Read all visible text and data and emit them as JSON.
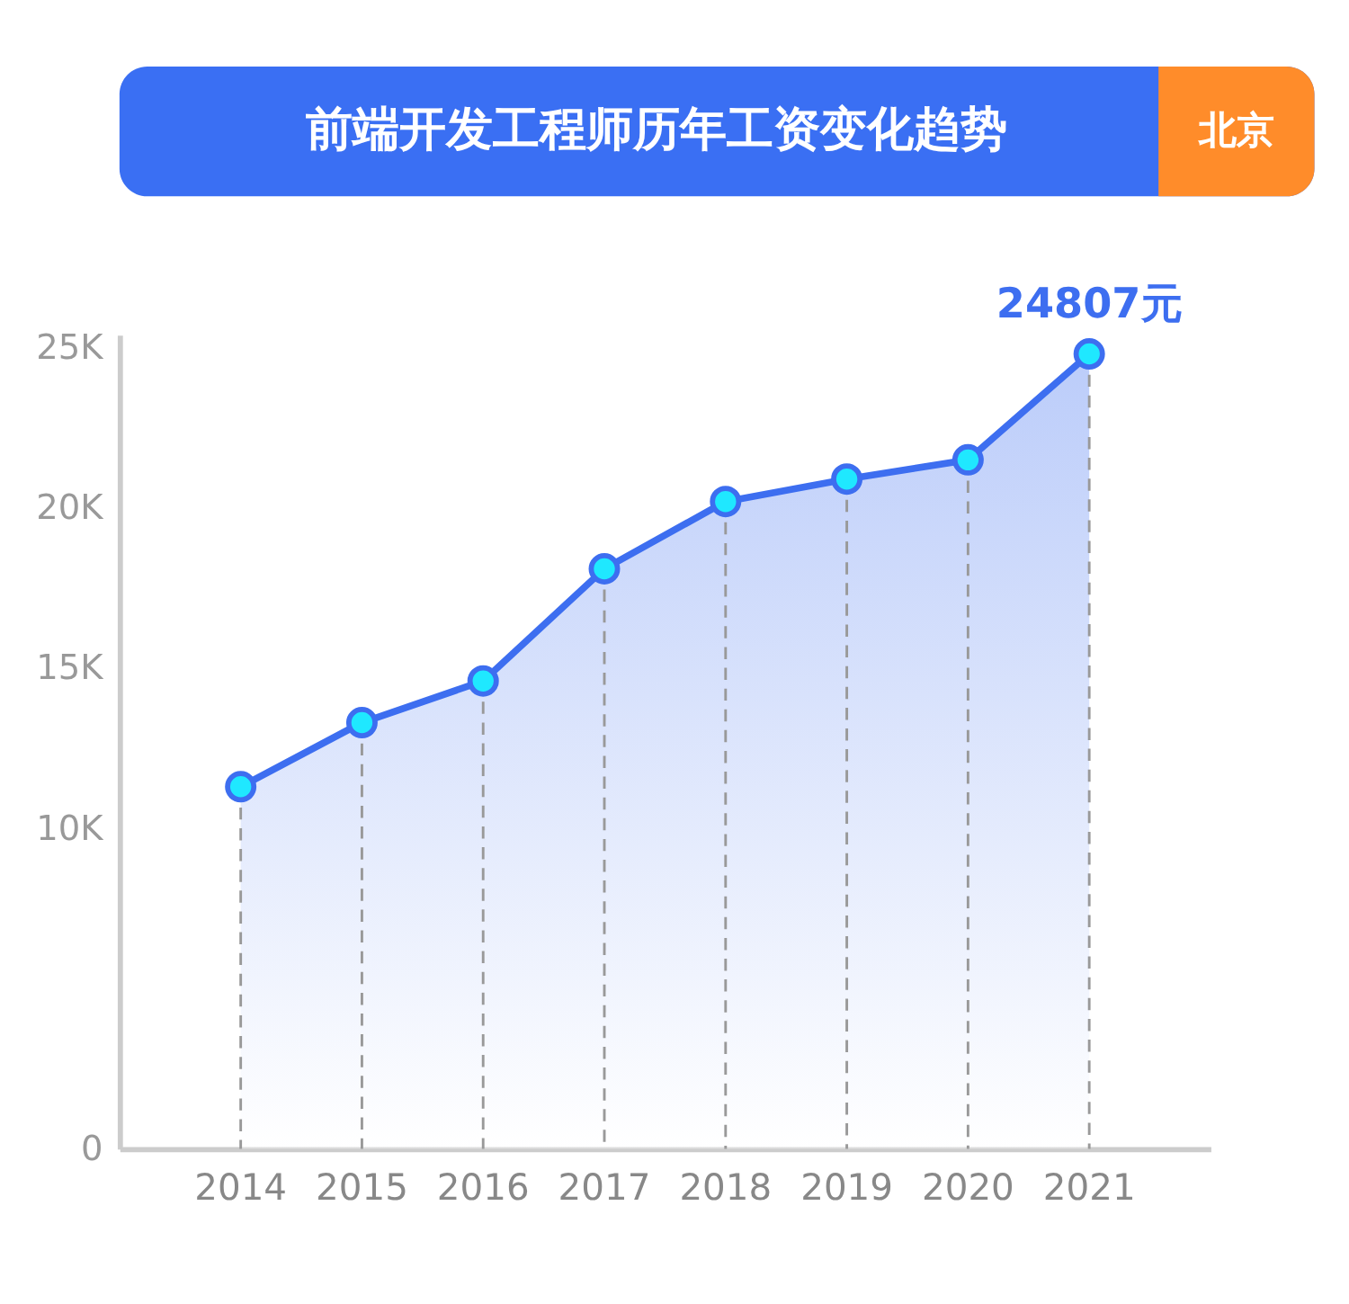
{
  "chart_data": {
    "type": "area",
    "title": "前端开发工程师历年工资变化趋势",
    "subtitle": "北京",
    "categories": [
      "2014",
      "2015",
      "2016",
      "2017",
      "2018",
      "2019",
      "2020",
      "2021"
    ],
    "series": [
      {
        "color": "#3d6ef0",
        "values": [
          11300,
          13300,
          14600,
          18100,
          20200,
          20900,
          21500,
          24807
        ],
        "value_labels": [
          null,
          null,
          null,
          null,
          null,
          null,
          null,
          "24807元"
        ]
      }
    ],
    "ylim": [
      0,
      25400
    ],
    "yticks": [
      0,
      {
        "value": 10000,
        "label": "10K"
      },
      {
        "value": 15000,
        "label": "15K"
      },
      {
        "value": 20000,
        "label": "20K"
      },
      {
        "value": 25000,
        "label": "25K"
      }
    ],
    "ref_lines": [
      {
        "axis": "x",
        "value": "2014",
        "line_style": "dashed",
        "color": "#999999"
      },
      {
        "axis": "x",
        "value": "2015",
        "line_style": "dashed",
        "color": "#999999"
      },
      {
        "axis": "x",
        "value": "2016",
        "line_style": "dashed",
        "color": "#999999"
      },
      {
        "axis": "x",
        "value": "2017",
        "line_style": "dashed",
        "color": "#999999"
      },
      {
        "axis": "x",
        "value": "2018",
        "line_style": "dashed",
        "color": "#999999"
      },
      {
        "axis": "x",
        "value": "2019",
        "line_style": "dashed",
        "color": "#999999"
      },
      {
        "axis": "x",
        "value": "2020",
        "line_style": "dashed",
        "color": "#999999"
      },
      {
        "axis": "x",
        "value": "2021",
        "line_style": "dashed",
        "color": "#999999"
      }
    ],
    "grid": false,
    "marker": "circle",
    "line_style": "solid"
  }
}
